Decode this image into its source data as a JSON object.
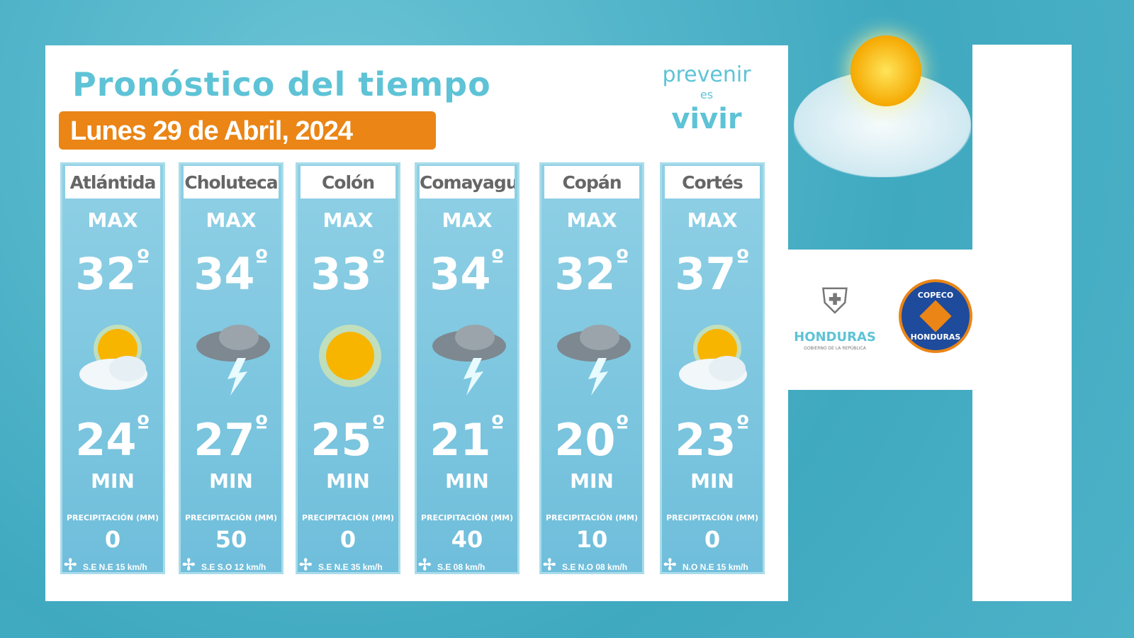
{
  "title": "Pronóstico del tiempo",
  "date": "Lunes 29 de Abril, 2024",
  "brand": {
    "line1": "prevenir",
    "line2": "es",
    "line3": "vivir"
  },
  "labels": {
    "max": "MAX",
    "min": "MIN",
    "precip": "PRECIPITACIÓN (MM)",
    "degree": "º"
  },
  "logos": {
    "honduras": "HONDURAS",
    "honduras_sub": "GOBIERNO DE LA REPÚBLICA",
    "copeco_top": "COPECO",
    "copeco_bottom": "HONDURAS"
  },
  "departments": [
    {
      "name": "Atlántida",
      "max": "32",
      "min": "24",
      "icon": "partly-sunny",
      "precip": "0",
      "wind": "S.E  N.E 15 km/h"
    },
    {
      "name": "Choluteca",
      "max": "34",
      "min": "27",
      "icon": "thunderstorm",
      "precip": "50",
      "wind": "S.E S.O  12 km/h"
    },
    {
      "name": "Colón",
      "max": "33",
      "min": "25",
      "icon": "sunny",
      "precip": "0",
      "wind": "S.E   N.E 35 km/h"
    },
    {
      "name": "Comayagua",
      "max": "34",
      "min": "21",
      "icon": "thunderstorm",
      "precip": "40",
      "wind": "S.E  08 km/h"
    },
    {
      "name": "Copán",
      "max": "32",
      "min": "20",
      "icon": "thunderstorm",
      "precip": "10",
      "wind": "S.E N.O 08 km/h"
    },
    {
      "name": "Cortés",
      "max": "37",
      "min": "23",
      "icon": "partly-sunny",
      "precip": "0",
      "wind": "N.O   N.E 15 km/h"
    }
  ]
}
